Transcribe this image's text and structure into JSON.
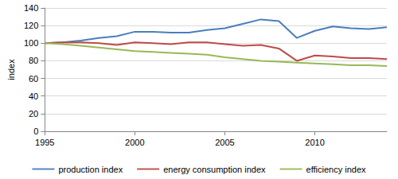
{
  "chart_data": {
    "type": "line",
    "ylabel": "index",
    "x": [
      1995,
      1996,
      1997,
      1998,
      1999,
      2000,
      2001,
      2002,
      2003,
      2004,
      2005,
      2006,
      2007,
      2008,
      2009,
      2010,
      2011,
      2012,
      2013,
      2014
    ],
    "series": [
      {
        "name": "production index",
        "color": "#4a7ebb",
        "values": [
          100,
          101,
          103,
          106,
          108,
          113,
          113,
          112,
          112,
          115,
          117,
          122,
          127,
          125,
          106,
          114,
          119,
          117,
          116,
          118
        ]
      },
      {
        "name": "energy consumption index",
        "color": "#be4b48",
        "values": [
          100,
          101,
          101,
          100,
          98,
          101,
          100,
          99,
          101,
          101,
          99,
          97,
          98,
          94,
          80,
          86,
          85,
          83,
          83,
          82
        ]
      },
      {
        "name": "efficiency index",
        "color": "#98b954",
        "values": [
          100,
          99,
          97,
          95,
          93,
          91,
          90,
          89,
          88,
          87,
          84,
          82,
          80,
          79,
          78,
          77,
          76,
          75,
          75,
          74
        ]
      }
    ],
    "xlim": [
      1995,
      2014
    ],
    "xticks": [
      1995,
      2000,
      2005,
      2010
    ],
    "ylim": [
      0,
      140
    ],
    "yticks": [
      0,
      20,
      40,
      60,
      80,
      100,
      120,
      140
    ],
    "grid": true,
    "legend": "bottom"
  }
}
